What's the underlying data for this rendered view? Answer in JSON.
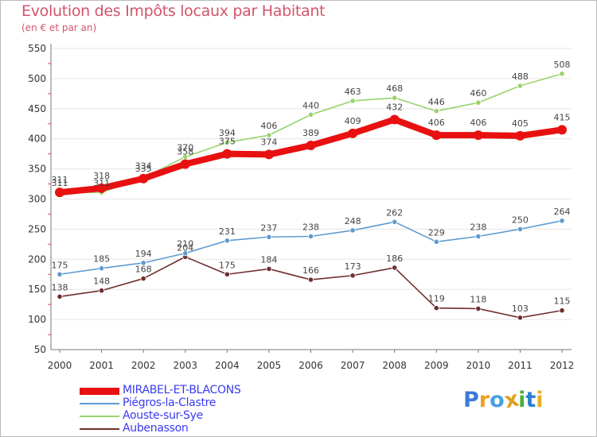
{
  "title": "Evolution des Impôts locaux par Habitant",
  "subtitle": "(en € et par an)",
  "chart_data": {
    "type": "line",
    "title": "Evolution des Impôts locaux par Habitant",
    "subtitle": "(en € et par an)",
    "x": [
      "2000",
      "2001",
      "2002",
      "2003",
      "2004",
      "2005",
      "2006",
      "2007",
      "2008",
      "2009",
      "2010",
      "2011",
      "2012"
    ],
    "yticks": [
      50,
      100,
      150,
      200,
      250,
      300,
      350,
      400,
      450,
      500,
      550
    ],
    "ylim": [
      50,
      550
    ],
    "grid": "horizontal",
    "legend_position": "bottom-left",
    "series": [
      {
        "name": "MIRABEL-ET-BLACONS",
        "color": "#e81010",
        "values": [
          311,
          318,
          334,
          358,
          375,
          374,
          389,
          409,
          432,
          406,
          406,
          405,
          415
        ]
      },
      {
        "name": "Piégros-la-Clastre",
        "color": "#5f9bd0",
        "values": [
          175,
          185,
          194,
          210,
          231,
          237,
          238,
          248,
          262,
          229,
          238,
          250,
          264
        ]
      },
      {
        "name": "Aouste-sur-Sye",
        "color": "#99d36b",
        "values": [
          311,
          311,
          335,
          370,
          394,
          406,
          440,
          463,
          468,
          446,
          460,
          488,
          508
        ]
      },
      {
        "name": "Aubenasson",
        "color": "#702e2e",
        "values": [
          138,
          148,
          168,
          204,
          175,
          184,
          166,
          173,
          186,
          119,
          118,
          103,
          115
        ]
      }
    ]
  },
  "logo": {
    "letters": [
      "P",
      "r",
      "o",
      "x",
      "i",
      "t",
      "i"
    ],
    "colors": [
      "#3a7bd5",
      "#f0a020",
      "#4aa0e0",
      "#e0a020",
      "#4ab040",
      "#2a7fd0",
      "#e8b020"
    ]
  }
}
